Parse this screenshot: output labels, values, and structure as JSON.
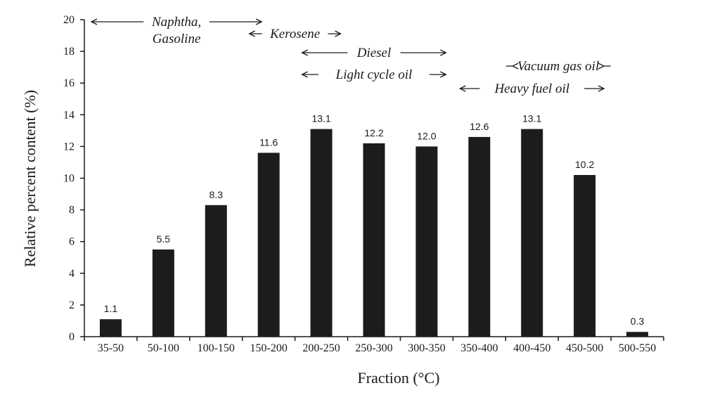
{
  "chart_data": {
    "type": "bar",
    "categories": [
      "35-50",
      "50-100",
      "100-150",
      "150-200",
      "200-250",
      "250-300",
      "300-350",
      "350-400",
      "400-450",
      "450-500",
      "500-550"
    ],
    "values": [
      1.1,
      5.5,
      8.3,
      11.6,
      13.1,
      12.2,
      12.0,
      12.6,
      13.1,
      10.2,
      0.3
    ],
    "value_labels": [
      "1.1",
      "5.5",
      "8.3",
      "11.6",
      "13.1",
      "12.2",
      "12.0",
      "12.6",
      "13.1",
      "10.2",
      "0.3"
    ],
    "xlabel": "Fraction (°C)",
    "ylabel": "Relative percent content (%)",
    "ylim": [
      0,
      20
    ],
    "yticks": [
      0,
      2,
      4,
      6,
      8,
      10,
      12,
      14,
      16,
      18,
      20
    ],
    "grid": false,
    "bar_color": "#1c1c1c",
    "annotations": [
      {
        "lines": [
          "Naphtha,",
          "Gasoline"
        ],
        "start": 0,
        "end": 3.5,
        "row": 0
      },
      {
        "lines": [
          "Kerosene"
        ],
        "start": 3,
        "end": 5,
        "row": 1
      },
      {
        "lines": [
          "Diesel"
        ],
        "start": 4,
        "end": 7,
        "row": 2
      },
      {
        "lines": [
          "Light cycle oil"
        ],
        "start": 4,
        "end": 7,
        "row": 3
      },
      {
        "lines": [
          "Vacuum gas oil"
        ],
        "start": 8,
        "end": 10,
        "row": 4
      },
      {
        "lines": [
          "Heavy fuel oil"
        ],
        "start": 7,
        "end": 10,
        "row": 5
      }
    ]
  }
}
